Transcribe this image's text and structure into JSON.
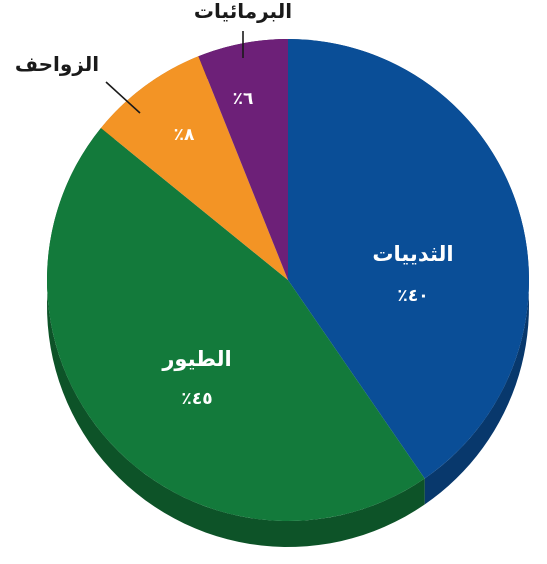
{
  "chart_data": {
    "type": "pie",
    "title": "",
    "slices": [
      {
        "label": "الثدييات",
        "value": 40,
        "value_label": "٪٤٠",
        "color": "#0a4e97",
        "side_color": "#08386c",
        "label_placement": "inside"
      },
      {
        "label": "الطيور",
        "value": 45,
        "value_label": "٪٤٥",
        "color": "#137a3b",
        "side_color": "#0d5328",
        "label_placement": "inside"
      },
      {
        "label": "الزواحف",
        "value": 8,
        "value_label": "٪٨",
        "color": "#f39425",
        "side_color": "#b86a12",
        "label_placement": "outside"
      },
      {
        "label": "البرمائيات",
        "value": 6,
        "value_label": "٪٦",
        "color": "#6d2078",
        "side_color": "#4d1555",
        "label_placement": "outside"
      }
    ],
    "start": "12 o'clock",
    "direction": "clockwise",
    "style": "3D tilted pie with depth"
  }
}
